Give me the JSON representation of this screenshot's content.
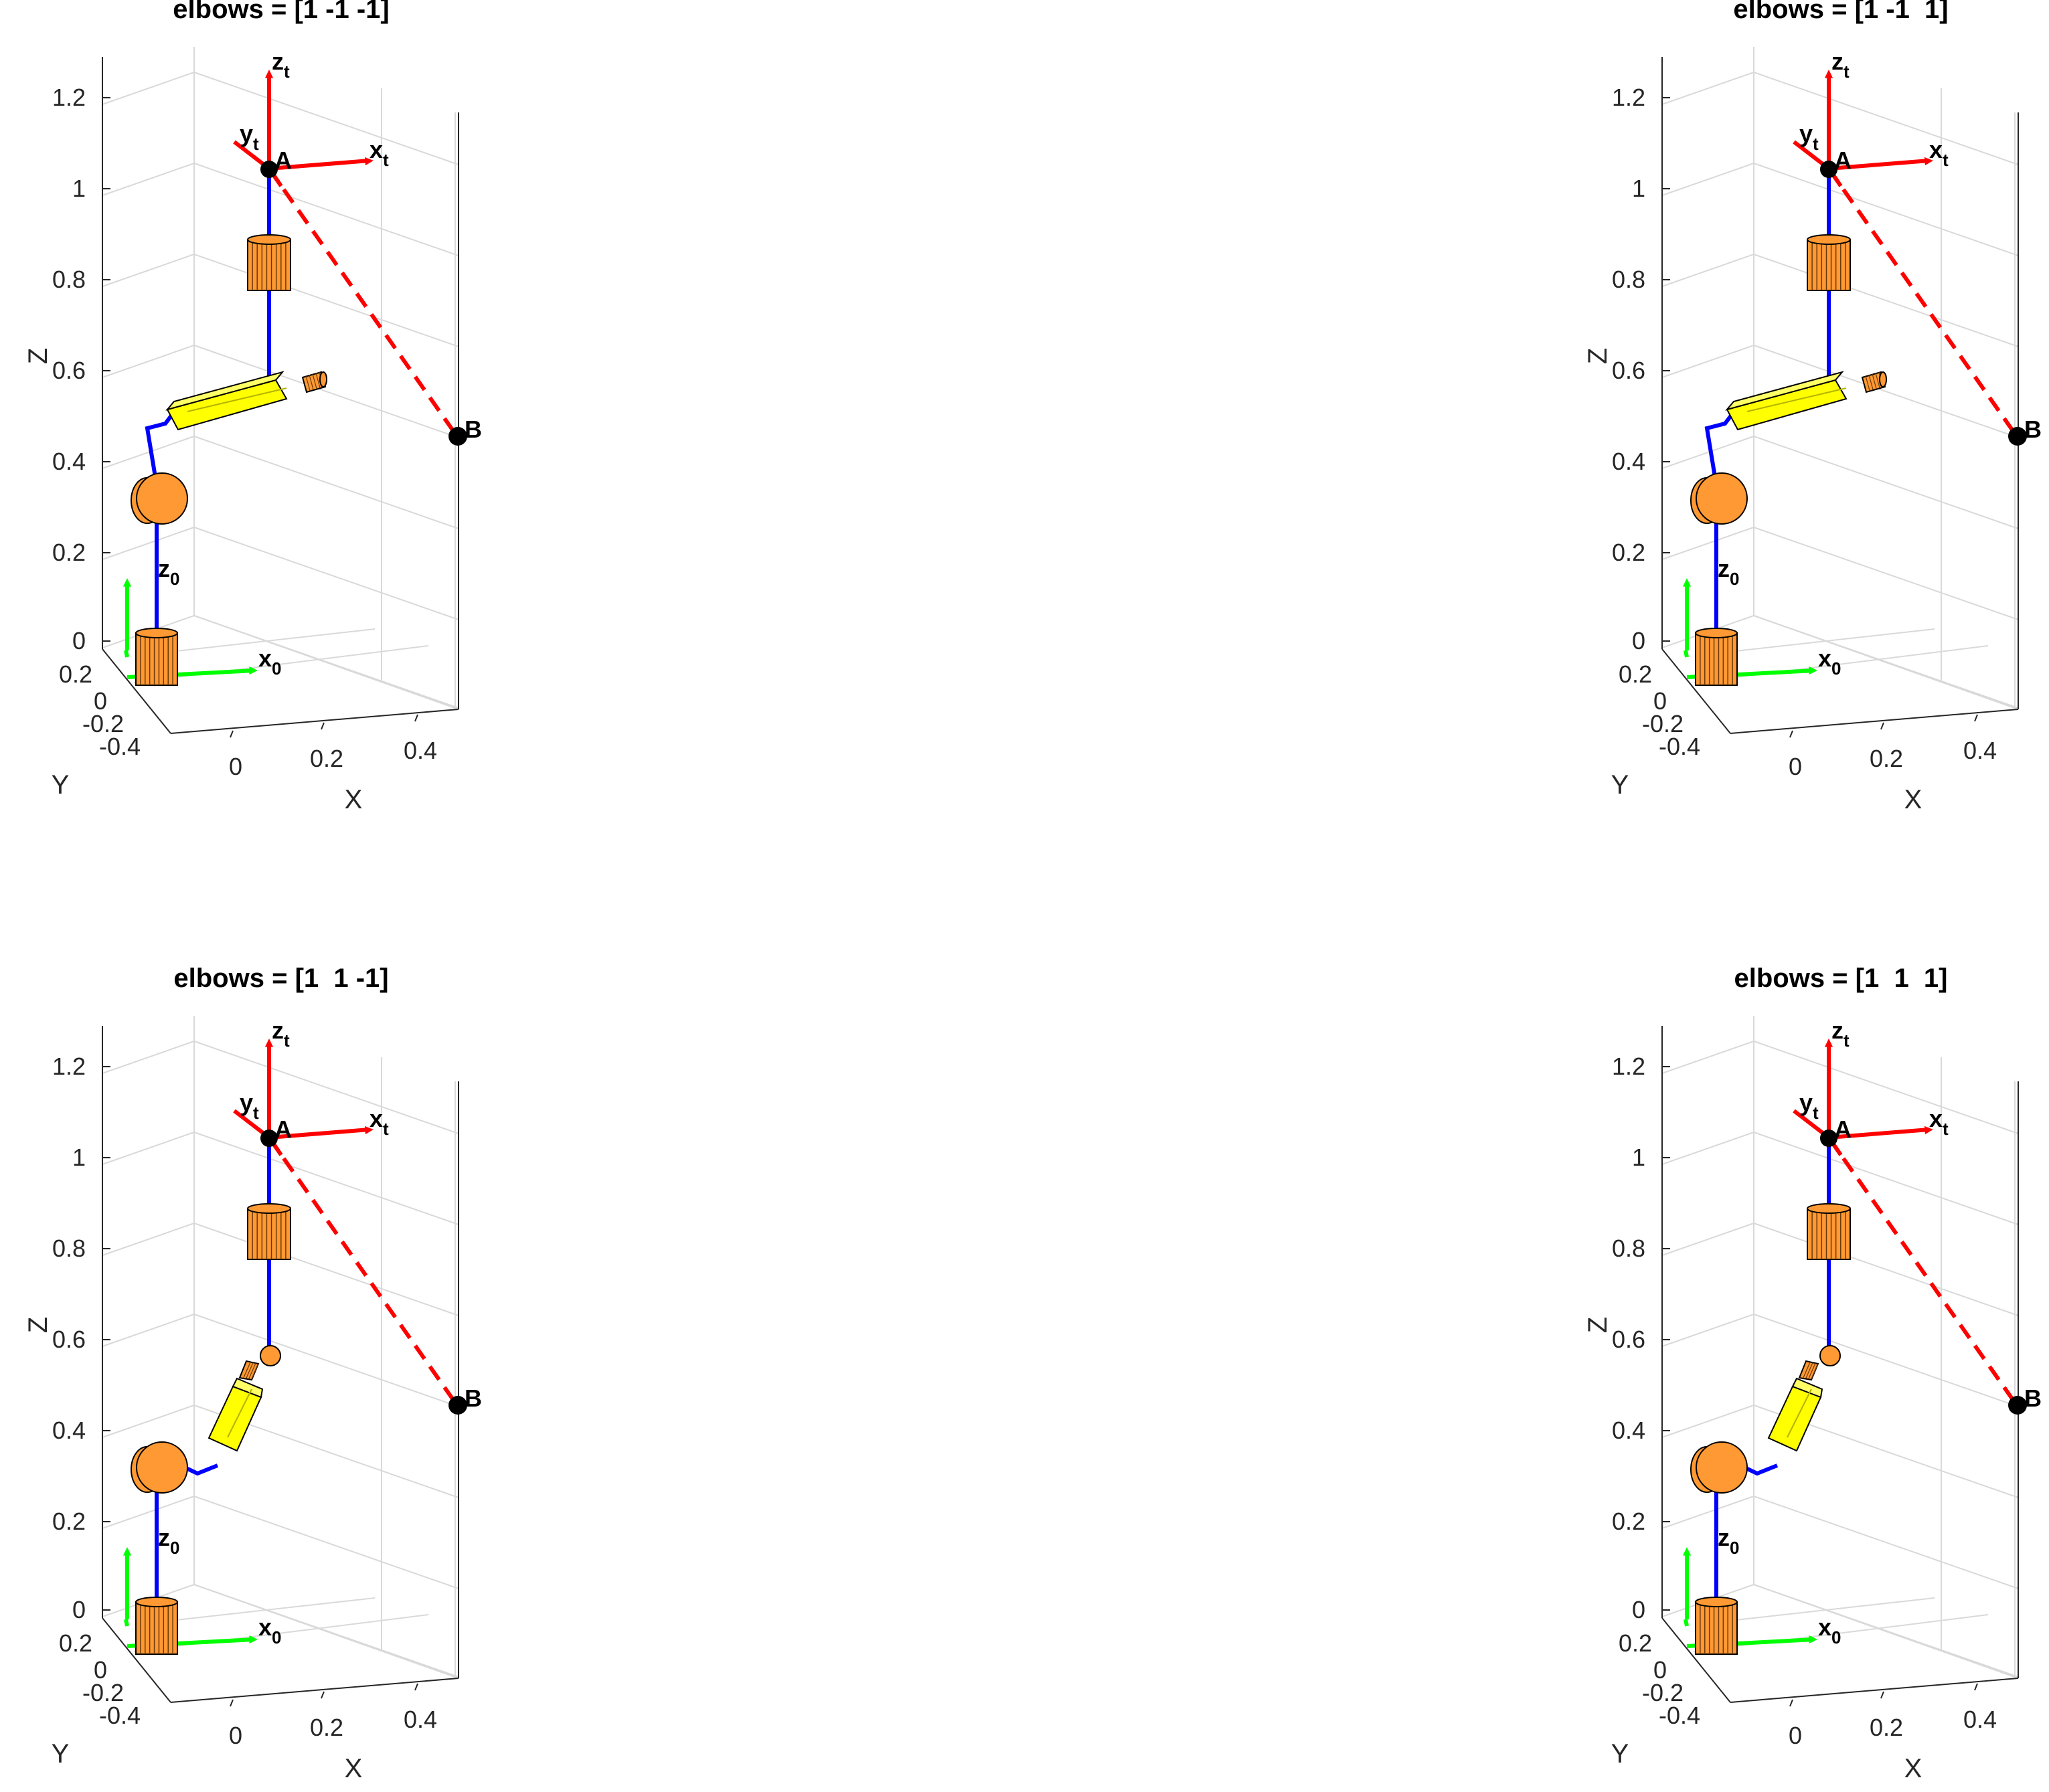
{
  "panels": [
    {
      "title": "elbows = [1 -1 -1]",
      "config": "upper"
    },
    {
      "title": "elbows = [1 -1  1]",
      "config": "upper"
    },
    {
      "title": "elbows = [1  1 -1]",
      "config": "lower"
    },
    {
      "title": "elbows = [1  1  1]",
      "config": "lower"
    }
  ],
  "axes": {
    "z_label": "Z",
    "y_label": "Y",
    "x_label": "X",
    "z_ticks": [
      "1.2",
      "1",
      "0.8",
      "0.6",
      "0.4",
      "0.2",
      "0"
    ],
    "y_ticks": [
      "0.2",
      "0",
      "-0.2",
      "-0.4"
    ],
    "x_ticks": [
      "0",
      "0.2",
      "0.4"
    ]
  },
  "frame_labels": {
    "z_t": "z",
    "z_t_sub": "t",
    "y_t": "y",
    "y_t_sub": "t",
    "x_t": "x",
    "x_t_sub": "t",
    "point_a": "A",
    "point_b": "B",
    "z_0": "z",
    "z_0_sub": "0",
    "x_0": "x",
    "x_0_sub": "0"
  },
  "colors": {
    "link": "#0000ff",
    "tool_frame": "#ff0000",
    "base_frame": "#00ff00",
    "joint": "#ff9933",
    "prismatic": "#ffff00",
    "grid": "#d9d9d9",
    "axis": "#262626"
  }
}
